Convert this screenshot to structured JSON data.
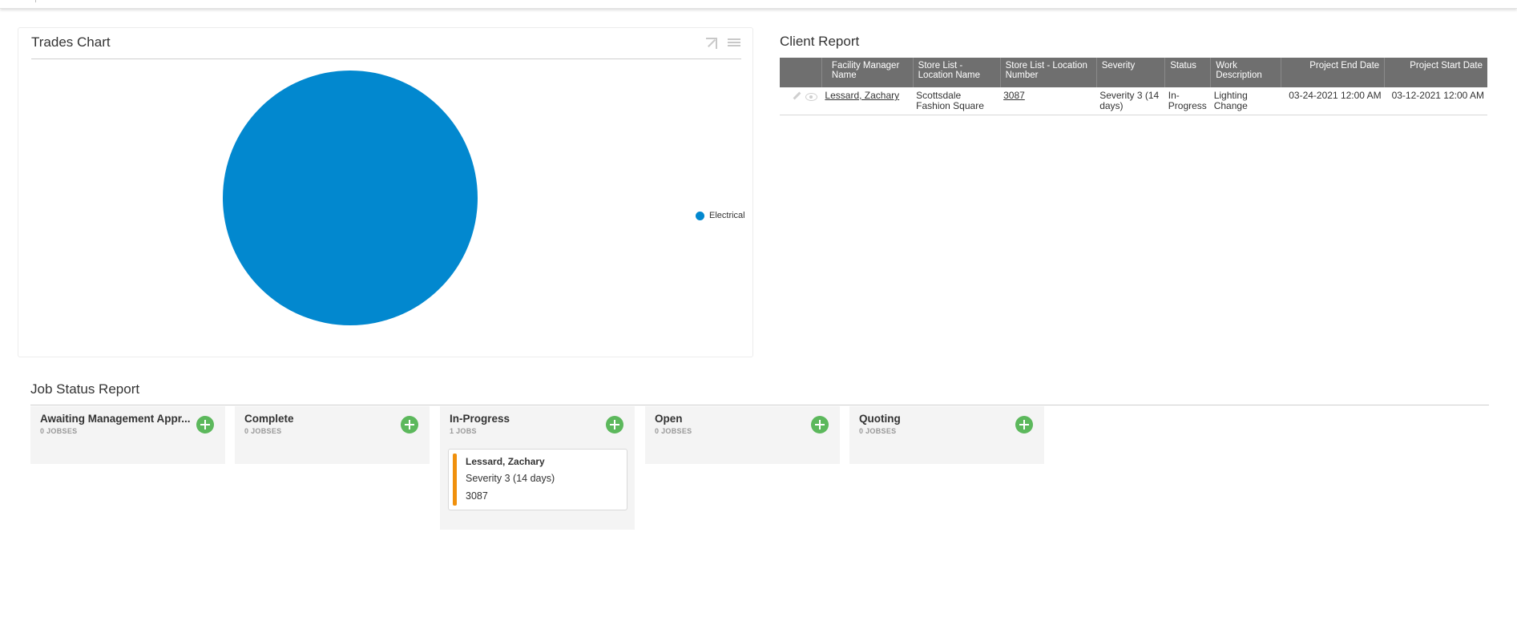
{
  "trades_chart": {
    "title": "Trades Chart",
    "icons": [
      "expand-icon",
      "menu-icon"
    ],
    "chart_data": {
      "type": "pie",
      "title": "",
      "slices": [
        {
          "label": "Electrical",
          "value": 100,
          "color": "#0288cf"
        }
      ],
      "legend": "right"
    }
  },
  "client_report": {
    "title": "Client Report",
    "columns": [
      "",
      "Facility Manager Name",
      "Store List - Location Name",
      "Store List - Location Number",
      "Severity",
      "Status",
      "Work Description",
      "Project End Date",
      "Project Start Date"
    ],
    "rows": [
      {
        "facility_manager": "Lessard, Zachary",
        "location_name": "Scottsdale Fashion Square",
        "location_number": "3087",
        "severity": "Severity 3 (14 days)",
        "status": "In-Progress",
        "work_description": "Lighting Change",
        "project_end_date": "03-24-2021 12:00 AM",
        "project_start_date": "03-12-2021 12:00 AM"
      }
    ]
  },
  "job_status": {
    "title": "Job Status Report",
    "lanes": [
      {
        "name": "Awaiting Management Appr...",
        "count": "0 JOBSES",
        "cards": []
      },
      {
        "name": "Complete",
        "count": "0 JOBSES",
        "cards": []
      },
      {
        "name": "In-Progress",
        "count": "1 JOBS",
        "cards": [
          {
            "name": "Lessard, Zachary",
            "severity": "Severity 3 (14 days)",
            "number": "3087",
            "color": "#f0900c"
          }
        ]
      },
      {
        "name": "Open",
        "count": "0 JOBSES",
        "cards": []
      },
      {
        "name": "Quoting",
        "count": "0 JOBSES",
        "cards": []
      }
    ]
  }
}
